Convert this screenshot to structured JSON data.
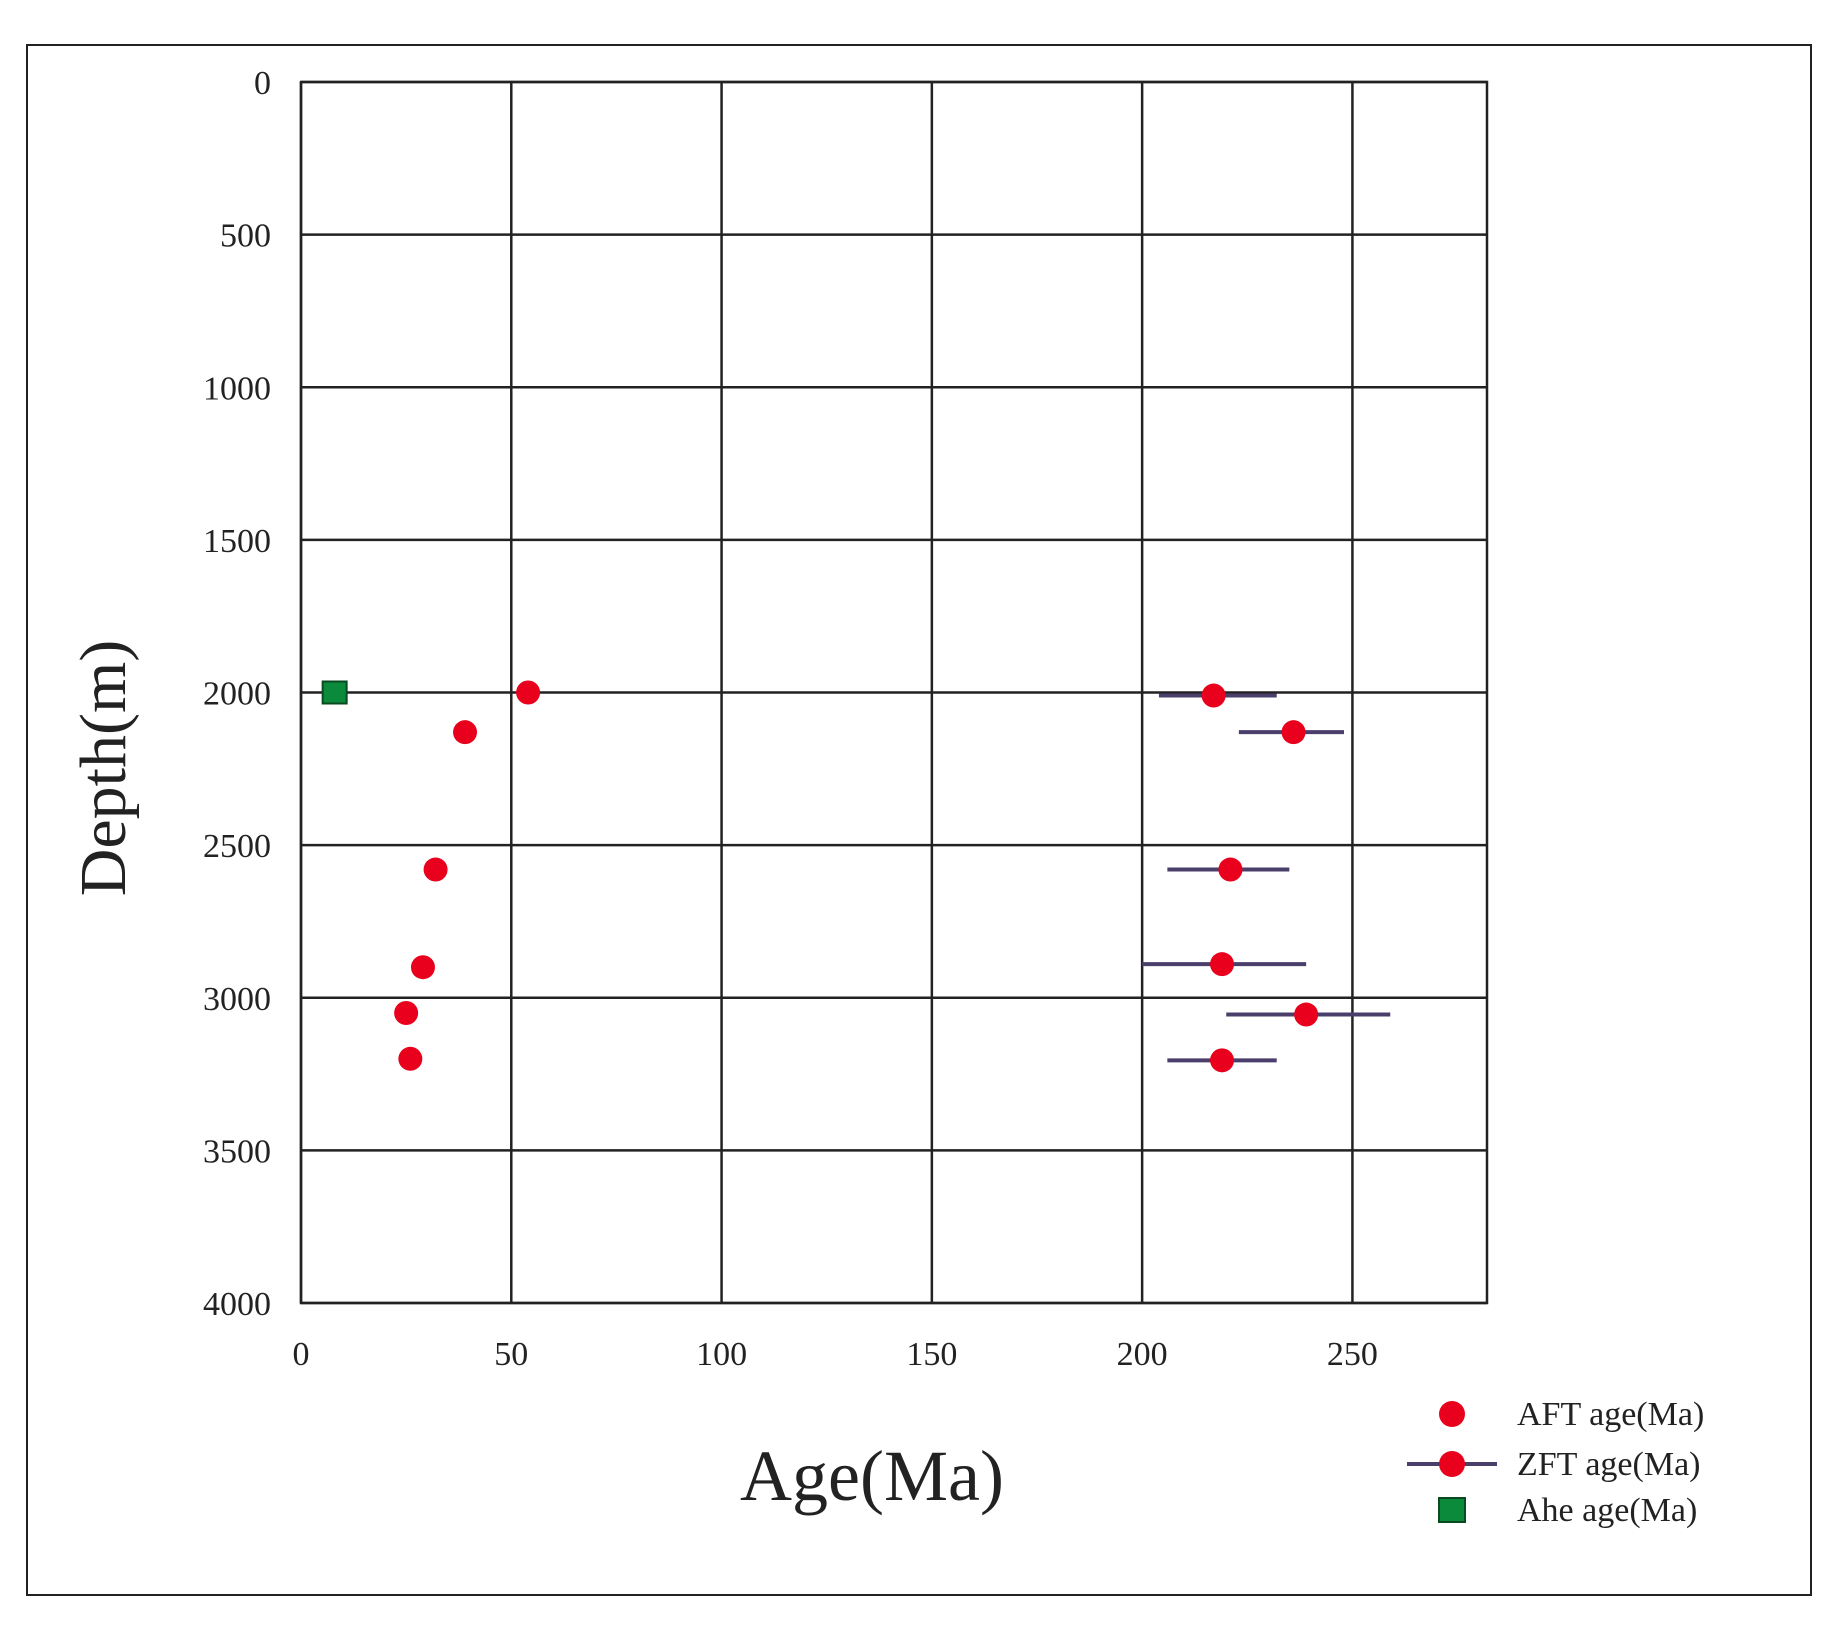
{
  "chart_data": {
    "type": "scatter",
    "xlabel": "Age(Ma)",
    "ylabel": "Depth(m)",
    "xlim": [
      0,
      282
    ],
    "ylim": [
      0,
      4000
    ],
    "y_inverted": true,
    "grid": true,
    "x_ticks": [
      0,
      50,
      100,
      150,
      200,
      250
    ],
    "y_ticks": [
      0,
      500,
      1000,
      1500,
      2000,
      2500,
      3000,
      3500,
      4000
    ],
    "legend_position": "bottom-right",
    "series": [
      {
        "name": "AFT age(Ma)",
        "marker": "circle",
        "color": "#e8001c",
        "points": [
          {
            "x": 54,
            "y": 2000
          },
          {
            "x": 39,
            "y": 2130
          },
          {
            "x": 32,
            "y": 2580
          },
          {
            "x": 29,
            "y": 2900
          },
          {
            "x": 25,
            "y": 3050
          },
          {
            "x": 26,
            "y": 3200
          }
        ]
      },
      {
        "name": "ZFT age(Ma)",
        "marker": "circle-errorbar",
        "color": "#e8001c",
        "error_color": "#4a3f6b",
        "points": [
          {
            "x": 217,
            "y": 2010,
            "xmin": 204,
            "xmax": 232
          },
          {
            "x": 236,
            "y": 2130,
            "xmin": 223,
            "xmax": 248
          },
          {
            "x": 221,
            "y": 2580,
            "xmin": 206,
            "xmax": 235
          },
          {
            "x": 219,
            "y": 2890,
            "xmin": 200,
            "xmax": 239
          },
          {
            "x": 239,
            "y": 3055,
            "xmin": 220,
            "xmax": 259
          },
          {
            "x": 219,
            "y": 3205,
            "xmin": 206,
            "xmax": 232
          }
        ]
      },
      {
        "name": "Ahe age(Ma)",
        "marker": "square",
        "color": "#0a8a3a",
        "points": [
          {
            "x": 8,
            "y": 2000
          }
        ]
      }
    ]
  }
}
